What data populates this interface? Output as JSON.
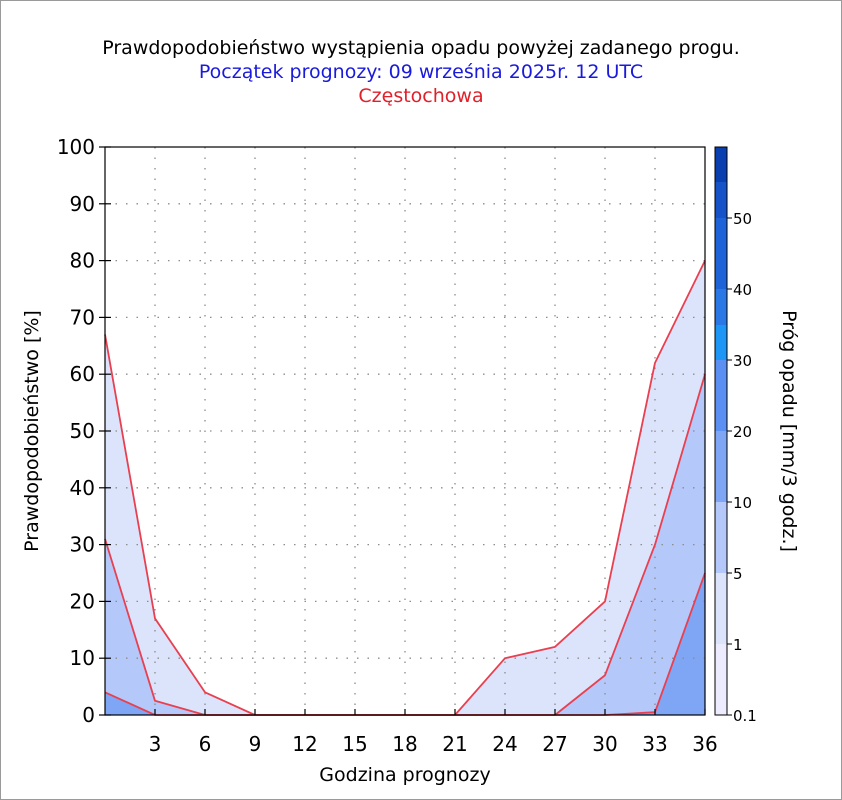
{
  "header": {
    "title": "Prawdopodobieństwo wystąpienia opadu powyżej zadanego progu.",
    "subtitle": "Początek prognozy: 09 września 2025r. 12 UTC",
    "location": "Częstochowa"
  },
  "chart_data": {
    "type": "area",
    "xlabel": "Godzina prognozy",
    "ylabel": "Prawdopodobieństwo [%]",
    "xlim": [
      0,
      36
    ],
    "ylim": [
      0,
      100
    ],
    "x_ticks": [
      3,
      6,
      9,
      12,
      15,
      18,
      21,
      24,
      27,
      30,
      33,
      36
    ],
    "y_ticks": [
      0,
      10,
      20,
      30,
      40,
      50,
      60,
      70,
      80,
      90,
      100
    ],
    "grid": true,
    "x": [
      0,
      3,
      6,
      9,
      12,
      15,
      18,
      21,
      24,
      27,
      30,
      33,
      36
    ],
    "series": [
      {
        "threshold": "0.1",
        "color": "#dce4fc",
        "values": [
          67,
          17,
          4,
          0,
          0,
          0,
          0,
          0,
          10,
          12,
          20,
          62,
          80
        ]
      },
      {
        "threshold": "1",
        "color": "#b4c8fa",
        "values": [
          31,
          2.5,
          0,
          0,
          0,
          0,
          0,
          0,
          0,
          0,
          7,
          30,
          60
        ]
      },
      {
        "threshold": "5",
        "color": "#7fa6f5",
        "values": [
          4,
          0,
          0,
          0,
          0,
          0,
          0,
          0,
          0,
          0,
          0,
          0.5,
          25
        ]
      }
    ],
    "line_color": "#e84050",
    "colorbar": {
      "label": "Próg opadu [mm/3 godz.]",
      "tick_labels": [
        "0.1",
        "1",
        "5",
        "10",
        "20",
        "30",
        "40",
        "50"
      ],
      "colors": [
        "#ececfe",
        "#dce4fc",
        "#b4c8fa",
        "#7fa6f5",
        "#5b8ff2",
        "#1e96f5",
        "#2a78e6",
        "#1f63d8",
        "#1652c8",
        "#0a3fb0"
      ]
    }
  }
}
